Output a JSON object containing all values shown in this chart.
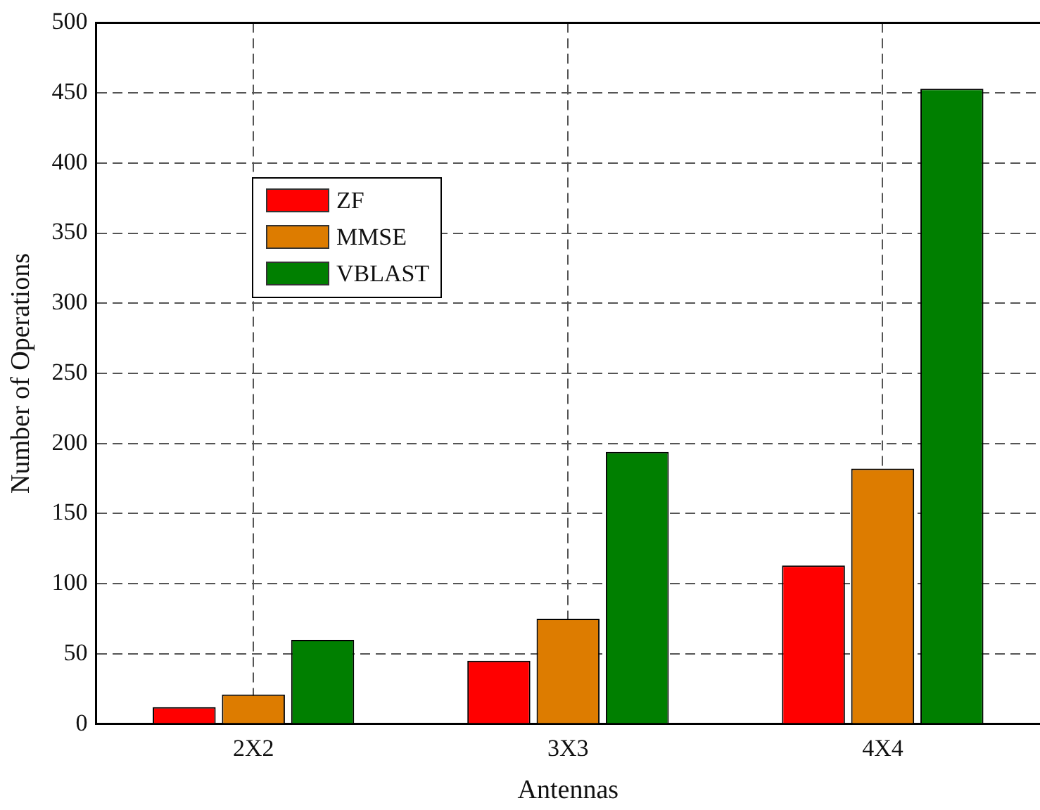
{
  "chart_data": {
    "type": "bar",
    "xlabel": "Antennas",
    "ylabel": "Number of Operations",
    "categories": [
      "2X2",
      "3X3",
      "4X4"
    ],
    "series": [
      {
        "name": "ZF",
        "color": "#ff0000",
        "values": [
          12,
          45,
          113
        ]
      },
      {
        "name": "MMSE",
        "color": "#dd7c00",
        "values": [
          21,
          75,
          182
        ]
      },
      {
        "name": "VBLAST",
        "color": "#007f00",
        "values": [
          60,
          194,
          453
        ]
      }
    ],
    "ylim": [
      0,
      500
    ],
    "yticks": [
      0,
      50,
      100,
      150,
      200,
      250,
      300,
      350,
      400,
      450,
      500
    ],
    "grid": true,
    "legend": "top left"
  }
}
